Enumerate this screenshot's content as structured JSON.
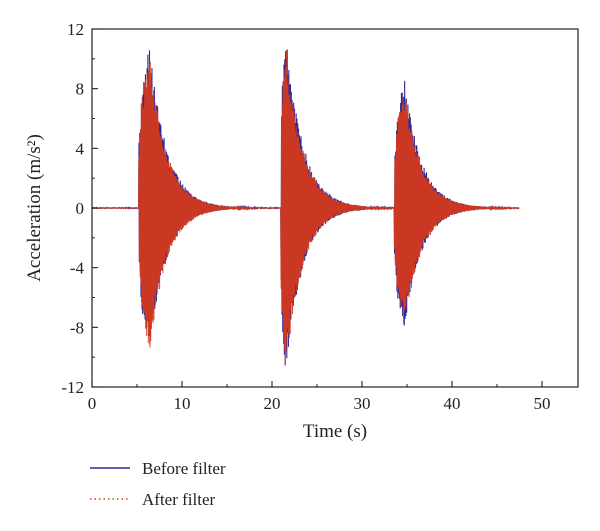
{
  "chart_data": {
    "type": "line",
    "title": "",
    "xlabel": "Time (s)",
    "ylabel": "Acceleration (m/s²)",
    "xlim": [
      0,
      54
    ],
    "ylim": [
      -12,
      12
    ],
    "x_ticks": [
      0,
      10,
      20,
      30,
      40,
      50
    ],
    "y_ticks": [
      -12,
      -8,
      -4,
      0,
      4,
      8,
      12
    ],
    "x_tick_labels": [
      "0",
      "10",
      "20",
      "30",
      "40",
      "50"
    ],
    "y_tick_labels": [
      "-12",
      "-8",
      "-4",
      "0",
      "4",
      "8",
      "12"
    ],
    "grid": false,
    "legend_position": "bottom-left, below plot",
    "signal_duration": [
      0,
      47.5
    ],
    "series": [
      {
        "name": "Before filter",
        "color": "#2a2a9a",
        "line_style": "solid",
        "bursts": [
          {
            "start": 5.2,
            "peak_time": 6.4,
            "max": 11.1,
            "min": -9.6,
            "first_spike_max": 7.0,
            "first_spike_min": -6.7
          },
          {
            "start": 21.0,
            "peak_time": 21.5,
            "max": 11.9,
            "min": -11.2,
            "first_spike_max": 10.0,
            "first_spike_min": -9.5
          },
          {
            "start": 33.6,
            "peak_time": 34.7,
            "max": 8.7,
            "min": -8.1,
            "first_spike_max": 5.4,
            "first_spike_min": -5.7
          }
        ]
      },
      {
        "name": "After filter",
        "color": "#d83a1a",
        "line_style": "dotted",
        "bursts": [
          {
            "start": 5.2,
            "peak_time": 6.4,
            "max": 10.4,
            "min": -9.8,
            "first_spike_max": 6.6,
            "first_spike_min": -6.3
          },
          {
            "start": 21.0,
            "peak_time": 21.5,
            "max": 11.2,
            "min": -11.0,
            "first_spike_max": 9.4,
            "first_spike_min": -9.0
          },
          {
            "start": 33.6,
            "peak_time": 34.7,
            "max": 8.2,
            "min": -8.2,
            "first_spike_max": 5.1,
            "first_spike_min": -5.3
          }
        ]
      }
    ]
  }
}
